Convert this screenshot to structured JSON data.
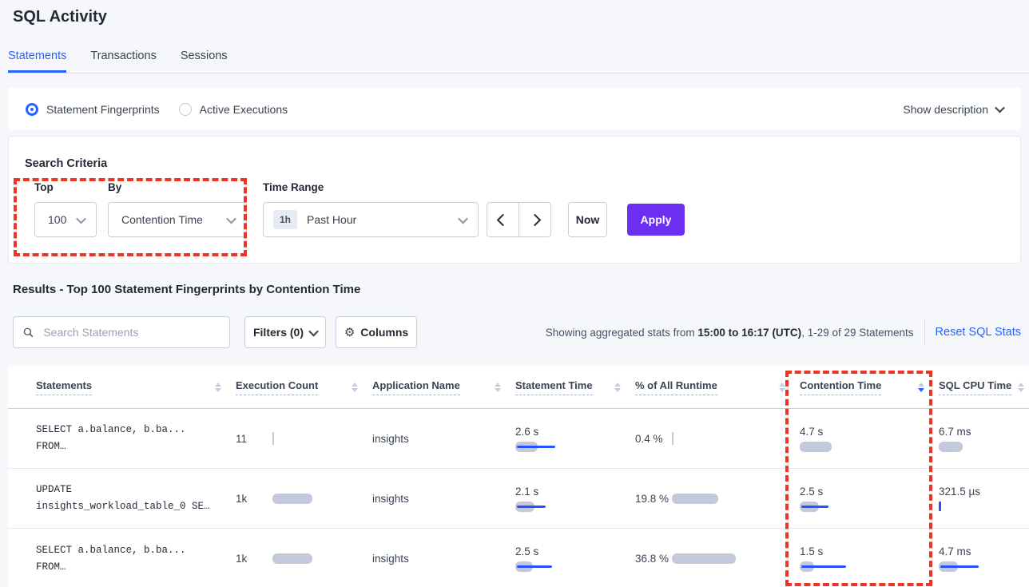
{
  "page": {
    "title": "SQL Activity"
  },
  "tabs": [
    {
      "label": "Statements",
      "active": true
    },
    {
      "label": "Transactions",
      "active": false
    },
    {
      "label": "Sessions",
      "active": false
    }
  ],
  "view_toggle": {
    "options": [
      {
        "label": "Statement Fingerprints",
        "selected": true
      },
      {
        "label": "Active Executions",
        "selected": false
      }
    ],
    "show_description": "Show description"
  },
  "search_criteria": {
    "heading": "Search Criteria",
    "top": {
      "label": "Top",
      "value": "100"
    },
    "by": {
      "label": "By",
      "value": "Contention Time"
    },
    "time_range": {
      "label": "Time Range",
      "badge": "1h",
      "value": "Past Hour"
    },
    "now_label": "Now",
    "apply_label": "Apply"
  },
  "results": {
    "heading": "Results - Top 100 Statement Fingerprints by Contention Time",
    "search_placeholder": "Search Statements",
    "filters_label": "Filters (0)",
    "columns_label": "Columns",
    "stats_prefix": "Showing aggregated stats from ",
    "stats_bold": "15:00 to 16:17 (UTC)",
    "stats_suffix": ", 1-29 of 29 Statements",
    "reset_label": "Reset SQL Stats"
  },
  "table": {
    "columns": [
      {
        "label": "Statements",
        "sort": "none"
      },
      {
        "label": "Execution Count",
        "sort": "none"
      },
      {
        "label": "Application Name",
        "sort": "none"
      },
      {
        "label": "Statement Time",
        "sort": "none"
      },
      {
        "label": "% of All Runtime",
        "sort": "none"
      },
      {
        "label": "Contention Time",
        "sort": "desc"
      },
      {
        "label": "SQL CPU Time",
        "sort": "none"
      }
    ],
    "rows": [
      {
        "cells": [
          {
            "lines": [
              "SELECT a.balance, b.ba...",
              "FROM…"
            ]
          },
          {
            "text": "11",
            "tick": "gray"
          },
          {
            "text": "insights"
          },
          {
            "text": "2.6 s",
            "gray": 28,
            "blue": 48
          },
          {
            "text": "0.4 %",
            "tick": "gray"
          },
          {
            "text": "4.7 s",
            "gray": 40,
            "blue": 0
          },
          {
            "text": "6.7 ms",
            "gray": 30,
            "blue": 0
          }
        ]
      },
      {
        "cells": [
          {
            "lines": [
              "UPDATE",
              "insights_workload_table_0 SE…"
            ]
          },
          {
            "text": "1k",
            "gray": 50,
            "blue": 0
          },
          {
            "text": "insights"
          },
          {
            "text": "2.1 s",
            "gray": 24,
            "blue": 36
          },
          {
            "text": "19.8 %",
            "gray": 58,
            "blue": 0
          },
          {
            "text": "2.5 s",
            "gray": 24,
            "blue": 34
          },
          {
            "text": "321.5 µs",
            "tick": "blue"
          }
        ]
      },
      {
        "cells": [
          {
            "lines": [
              "SELECT a.balance, b.ba...",
              "FROM…"
            ]
          },
          {
            "text": "1k",
            "gray": 50,
            "blue": 0
          },
          {
            "text": "insights"
          },
          {
            "text": "2.5 s",
            "gray": 22,
            "blue": 44
          },
          {
            "text": "36.8 %",
            "gray": 80,
            "blue": 0
          },
          {
            "text": "1.5 s",
            "gray": 18,
            "blue": 56
          },
          {
            "text": "4.7 ms",
            "gray": 24,
            "blue": 48
          }
        ]
      }
    ]
  },
  "colors": {
    "accent_blue": "#2962ff",
    "bar_blue": "#2952ff",
    "bar_gray": "#c3c9db",
    "apply_purple": "#6c2ff2",
    "annotation_red": "#ee3524",
    "background": "#f5f7fa"
  }
}
